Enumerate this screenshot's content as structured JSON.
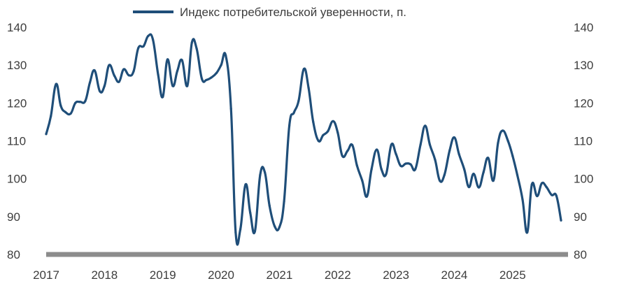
{
  "chart_data": {
    "type": "line",
    "title": "",
    "xlabel": "",
    "ylabel": "",
    "ylim": [
      80,
      140
    ],
    "xlim": [
      2017,
      2025.95
    ],
    "y_ticks": [
      80,
      90,
      100,
      110,
      120,
      130,
      140
    ],
    "x_ticks": [
      2017,
      2018,
      2019,
      2020,
      2021,
      2022,
      2023,
      2024,
      2025
    ],
    "grid": false,
    "legend_position": "top-center",
    "colors": {
      "line": "#1f4e79",
      "baseline": "#8c8c8c",
      "text": "#3d3d3d"
    },
    "series": [
      {
        "name": "Индекс потребительской уверенности, п.",
        "points": [
          [
            2017.0,
            111.8
          ],
          [
            2017.08,
            116.5
          ],
          [
            2017.17,
            125.0
          ],
          [
            2017.25,
            119.3
          ],
          [
            2017.33,
            117.6
          ],
          [
            2017.42,
            117.2
          ],
          [
            2017.5,
            120.0
          ],
          [
            2017.58,
            120.3
          ],
          [
            2017.67,
            120.5
          ],
          [
            2017.75,
            125.4
          ],
          [
            2017.83,
            128.6
          ],
          [
            2017.92,
            123.1
          ],
          [
            2018.0,
            124.5
          ],
          [
            2018.08,
            130.0
          ],
          [
            2018.17,
            127.2
          ],
          [
            2018.25,
            125.6
          ],
          [
            2018.33,
            128.9
          ],
          [
            2018.42,
            127.3
          ],
          [
            2018.5,
            128.4
          ],
          [
            2018.58,
            134.5
          ],
          [
            2018.67,
            135.0
          ],
          [
            2018.75,
            137.7
          ],
          [
            2018.83,
            136.8
          ],
          [
            2018.92,
            127.5
          ],
          [
            2019.0,
            121.6
          ],
          [
            2019.08,
            131.5
          ],
          [
            2019.17,
            124.5
          ],
          [
            2019.25,
            128.5
          ],
          [
            2019.33,
            131.3
          ],
          [
            2019.42,
            124.5
          ],
          [
            2019.5,
            136.0
          ],
          [
            2019.58,
            134.4
          ],
          [
            2019.67,
            126.4
          ],
          [
            2019.75,
            126.1
          ],
          [
            2019.83,
            126.7
          ],
          [
            2019.92,
            127.9
          ],
          [
            2020.0,
            130.0
          ],
          [
            2020.08,
            132.5
          ],
          [
            2020.17,
            118.5
          ],
          [
            2020.25,
            85.8
          ],
          [
            2020.33,
            86.6
          ],
          [
            2020.42,
            98.5
          ],
          [
            2020.5,
            91.0
          ],
          [
            2020.58,
            86.1
          ],
          [
            2020.67,
            101.0
          ],
          [
            2020.75,
            101.7
          ],
          [
            2020.83,
            92.9
          ],
          [
            2020.92,
            87.4
          ],
          [
            2021.0,
            87.2
          ],
          [
            2021.08,
            94.0
          ],
          [
            2021.17,
            114.0
          ],
          [
            2021.25,
            117.5
          ],
          [
            2021.33,
            120.6
          ],
          [
            2021.42,
            129.0
          ],
          [
            2021.5,
            124.0
          ],
          [
            2021.58,
            115.0
          ],
          [
            2021.67,
            110.0
          ],
          [
            2021.75,
            111.5
          ],
          [
            2021.83,
            112.5
          ],
          [
            2021.92,
            115.2
          ],
          [
            2022.0,
            112.2
          ],
          [
            2022.08,
            106.0
          ],
          [
            2022.17,
            107.4
          ],
          [
            2022.25,
            108.9
          ],
          [
            2022.33,
            103.5
          ],
          [
            2022.42,
            99.5
          ],
          [
            2022.5,
            95.3
          ],
          [
            2022.58,
            102.5
          ],
          [
            2022.67,
            107.7
          ],
          [
            2022.75,
            102.5
          ],
          [
            2022.83,
            101.2
          ],
          [
            2022.92,
            109.0
          ],
          [
            2023.0,
            106.5
          ],
          [
            2023.08,
            103.4
          ],
          [
            2023.17,
            104.0
          ],
          [
            2023.25,
            103.8
          ],
          [
            2023.33,
            102.5
          ],
          [
            2023.42,
            109.0
          ],
          [
            2023.5,
            114.0
          ],
          [
            2023.58,
            109.0
          ],
          [
            2023.67,
            105.0
          ],
          [
            2023.75,
            99.5
          ],
          [
            2023.83,
            101.0
          ],
          [
            2023.92,
            107.5
          ],
          [
            2024.0,
            110.9
          ],
          [
            2024.08,
            106.5
          ],
          [
            2024.17,
            102.5
          ],
          [
            2024.25,
            97.8
          ],
          [
            2024.33,
            101.3
          ],
          [
            2024.42,
            97.7
          ],
          [
            2024.5,
            101.7
          ],
          [
            2024.58,
            105.5
          ],
          [
            2024.67,
            99.5
          ],
          [
            2024.75,
            109.5
          ],
          [
            2024.83,
            112.7
          ],
          [
            2024.92,
            110.0
          ],
          [
            2025.0,
            106.0
          ],
          [
            2025.08,
            101.0
          ],
          [
            2025.17,
            94.5
          ],
          [
            2025.25,
            85.8
          ],
          [
            2025.33,
            98.5
          ],
          [
            2025.42,
            95.4
          ],
          [
            2025.5,
            98.8
          ],
          [
            2025.58,
            97.8
          ],
          [
            2025.67,
            95.7
          ],
          [
            2025.75,
            95.5
          ],
          [
            2025.83,
            89.0
          ]
        ]
      }
    ]
  }
}
